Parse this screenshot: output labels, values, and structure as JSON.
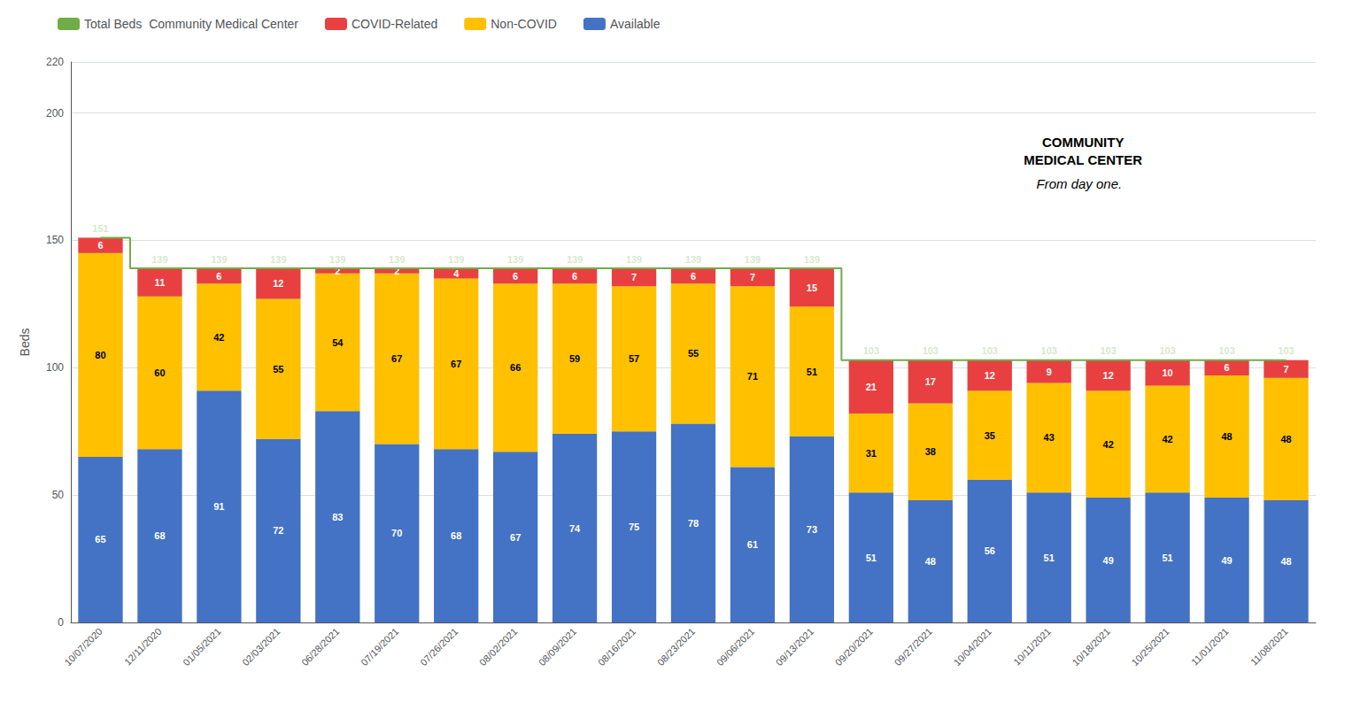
{
  "chart_data": {
    "type": "bar",
    "stacked": true,
    "data_labels": true,
    "grid": true,
    "legend": "upper left",
    "ylabel": "Beds",
    "ylim": [
      0,
      220
    ],
    "yticks": [
      0,
      50,
      100,
      150,
      200
    ],
    "categories": [
      "10/07/2020",
      "12/11/2020",
      "01/05/2021",
      "02/03/2021",
      "06/28/2021",
      "07/19/2021",
      "07/26/2021",
      "08/02/2021",
      "08/09/2021",
      "08/16/2021",
      "08/23/2021",
      "09/06/2021",
      "09/13/2021",
      "09/20/2021",
      "09/27/2021",
      "10/04/2021",
      "10/11/2021",
      "10/18/2021",
      "10/25/2021",
      "11/01/2021",
      "11/08/2021"
    ],
    "series": [
      {
        "name": "Total Beds  Community Medical Center",
        "type": "line",
        "color": "#70AD47",
        "values": [
          151,
          139,
          139,
          139,
          139,
          139,
          139,
          139,
          139,
          139,
          139,
          139,
          139,
          103,
          103,
          103,
          103,
          103,
          103,
          103,
          103
        ]
      },
      {
        "name": "COVID-Related",
        "type": "bar",
        "color": "#E84040",
        "values": [
          6,
          11,
          6,
          12,
          2,
          2,
          4,
          6,
          6,
          7,
          6,
          7,
          15,
          21,
          17,
          12,
          9,
          12,
          10,
          6,
          7
        ]
      },
      {
        "name": "Non-COVID",
        "type": "bar",
        "color": "#FFC000",
        "values": [
          80,
          60,
          42,
          55,
          54,
          67,
          67,
          66,
          59,
          57,
          55,
          71,
          51,
          31,
          38,
          35,
          43,
          42,
          42,
          48,
          48
        ]
      },
      {
        "name": "Available",
        "type": "bar",
        "color": "#4472C4",
        "values": [
          65,
          68,
          91,
          72,
          83,
          70,
          68,
          67,
          74,
          75,
          78,
          61,
          73,
          51,
          48,
          56,
          51,
          49,
          51,
          49,
          48
        ]
      }
    ],
    "annotations": [
      "COMMUNITY\nMEDICAL CENTER",
      "From day one."
    ]
  }
}
